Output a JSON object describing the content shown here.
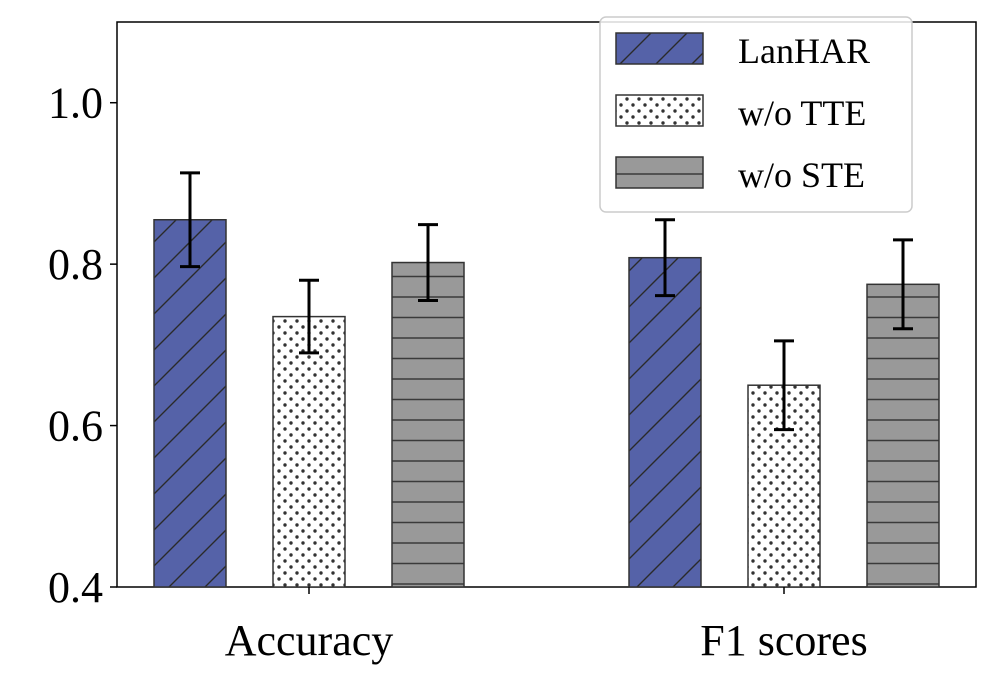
{
  "chart_data": {
    "type": "bar",
    "title": "",
    "xlabel": "",
    "ylabel": "",
    "categories": [
      "Accuracy",
      "F1 scores"
    ],
    "ylim": [
      0.4,
      1.1
    ],
    "yticks": [
      0.4,
      0.6,
      0.8,
      1.0
    ],
    "ytick_labels": [
      "0.4",
      "0.6",
      "0.8",
      "1.0"
    ],
    "grid": false,
    "legend_position": "top-right",
    "series": [
      {
        "name": "LanHAR",
        "values": [
          0.855,
          0.808
        ],
        "errors": [
          0.058,
          0.047
        ],
        "color": "#5562a8",
        "hatch": "diagonal"
      },
      {
        "name": "w/o TTE",
        "values": [
          0.735,
          0.65
        ],
        "errors": [
          0.045,
          0.055
        ],
        "color": "#ffffff",
        "hatch": "dots"
      },
      {
        "name": "w/o STE",
        "values": [
          0.802,
          0.775
        ],
        "errors": [
          0.047,
          0.055
        ],
        "color": "#999999",
        "hatch": "horizontal"
      }
    ]
  }
}
